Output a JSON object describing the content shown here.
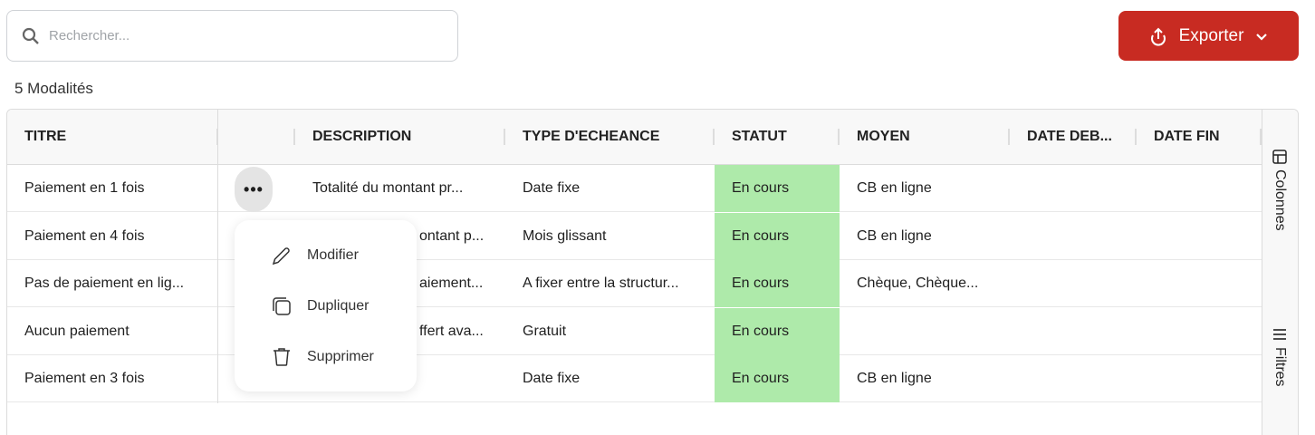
{
  "search": {
    "placeholder": "Rechercher..."
  },
  "export": {
    "label": "Exporter"
  },
  "count": "5 Modalités",
  "columns": [
    "TITRE",
    "",
    "DESCRIPTION",
    "TYPE D'ECHEANCE",
    "STATUT",
    "MOYEN",
    "DATE DEB...",
    "DATE FIN"
  ],
  "rows": [
    {
      "titre": "Paiement en 1 fois",
      "description": "Totalité du montant pr...",
      "type": "Date fixe",
      "statut": "En cours",
      "moyen": "CB en ligne",
      "date_debut": "",
      "date_fin": ""
    },
    {
      "titre": "Paiement en 4 fois",
      "description": "ontant p...",
      "type": "Mois glissant",
      "statut": "En cours",
      "moyen": "CB en ligne",
      "date_debut": "",
      "date_fin": ""
    },
    {
      "titre": "Pas de paiement en lig...",
      "description": "aiement...",
      "type": "A fixer entre la structur...",
      "statut": "En cours",
      "moyen": "Chèque, Chèque...",
      "date_debut": "",
      "date_fin": ""
    },
    {
      "titre": "Aucun paiement",
      "description": "ffert ava...",
      "type": "Gratuit",
      "statut": "En cours",
      "moyen": "",
      "date_debut": "",
      "date_fin": ""
    },
    {
      "titre": "Paiement en 3 fois",
      "description": "",
      "type": "Date fixe",
      "statut": "En cours",
      "moyen": "CB en ligne",
      "date_debut": "",
      "date_fin": ""
    }
  ],
  "side": {
    "columns": "Colonnes",
    "filters": "Filtres"
  },
  "menu": {
    "items": [
      "Modifier",
      "Dupliquer",
      "Supprimer"
    ]
  },
  "colors": {
    "accent": "#c82b22",
    "status_active": "#aeeaaa"
  }
}
